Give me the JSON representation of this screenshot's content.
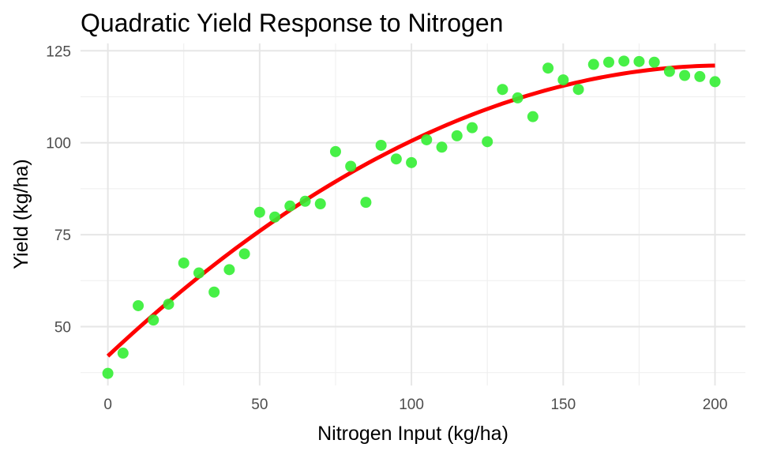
{
  "chart_data": {
    "type": "scatter",
    "title": "Quadratic Yield Response to Nitrogen",
    "xlabel": "Nitrogen Input (kg/ha)",
    "ylabel": "Yield (kg/ha)",
    "xlim": [
      -9,
      210
    ],
    "ylim": [
      34,
      127
    ],
    "x_ticks": [
      0,
      50,
      100,
      150,
      200
    ],
    "y_ticks": [
      50,
      75,
      100,
      125
    ],
    "grid": true,
    "points": {
      "color": "#33ee33",
      "x": [
        0,
        5,
        10,
        15,
        20,
        25,
        30,
        35,
        40,
        45,
        50,
        55,
        60,
        65,
        70,
        75,
        80,
        85,
        90,
        95,
        100,
        105,
        110,
        115,
        120,
        125,
        130,
        135,
        140,
        145,
        150,
        155,
        160,
        165,
        170,
        175,
        180,
        185,
        190,
        195,
        200
      ],
      "y": [
        37.3,
        42.8,
        55.7,
        51.8,
        56.1,
        67.3,
        64.6,
        59.4,
        65.5,
        69.8,
        81.1,
        79.8,
        82.8,
        84.1,
        83.4,
        97.6,
        93.6,
        83.8,
        99.3,
        95.6,
        94.6,
        100.8,
        98.8,
        101.9,
        104.1,
        100.3,
        114.5,
        112.2,
        107.1,
        120.3,
        117.1,
        114.5,
        121.3,
        121.9,
        122.2,
        122.1,
        121.9,
        119.4,
        118.3,
        118.0,
        116.6
      ]
    },
    "fit_line": {
      "color": "#ff0000",
      "type": "quadratic",
      "intercept": 42.0,
      "linear": 0.775,
      "quadratic": -0.0019
    }
  }
}
